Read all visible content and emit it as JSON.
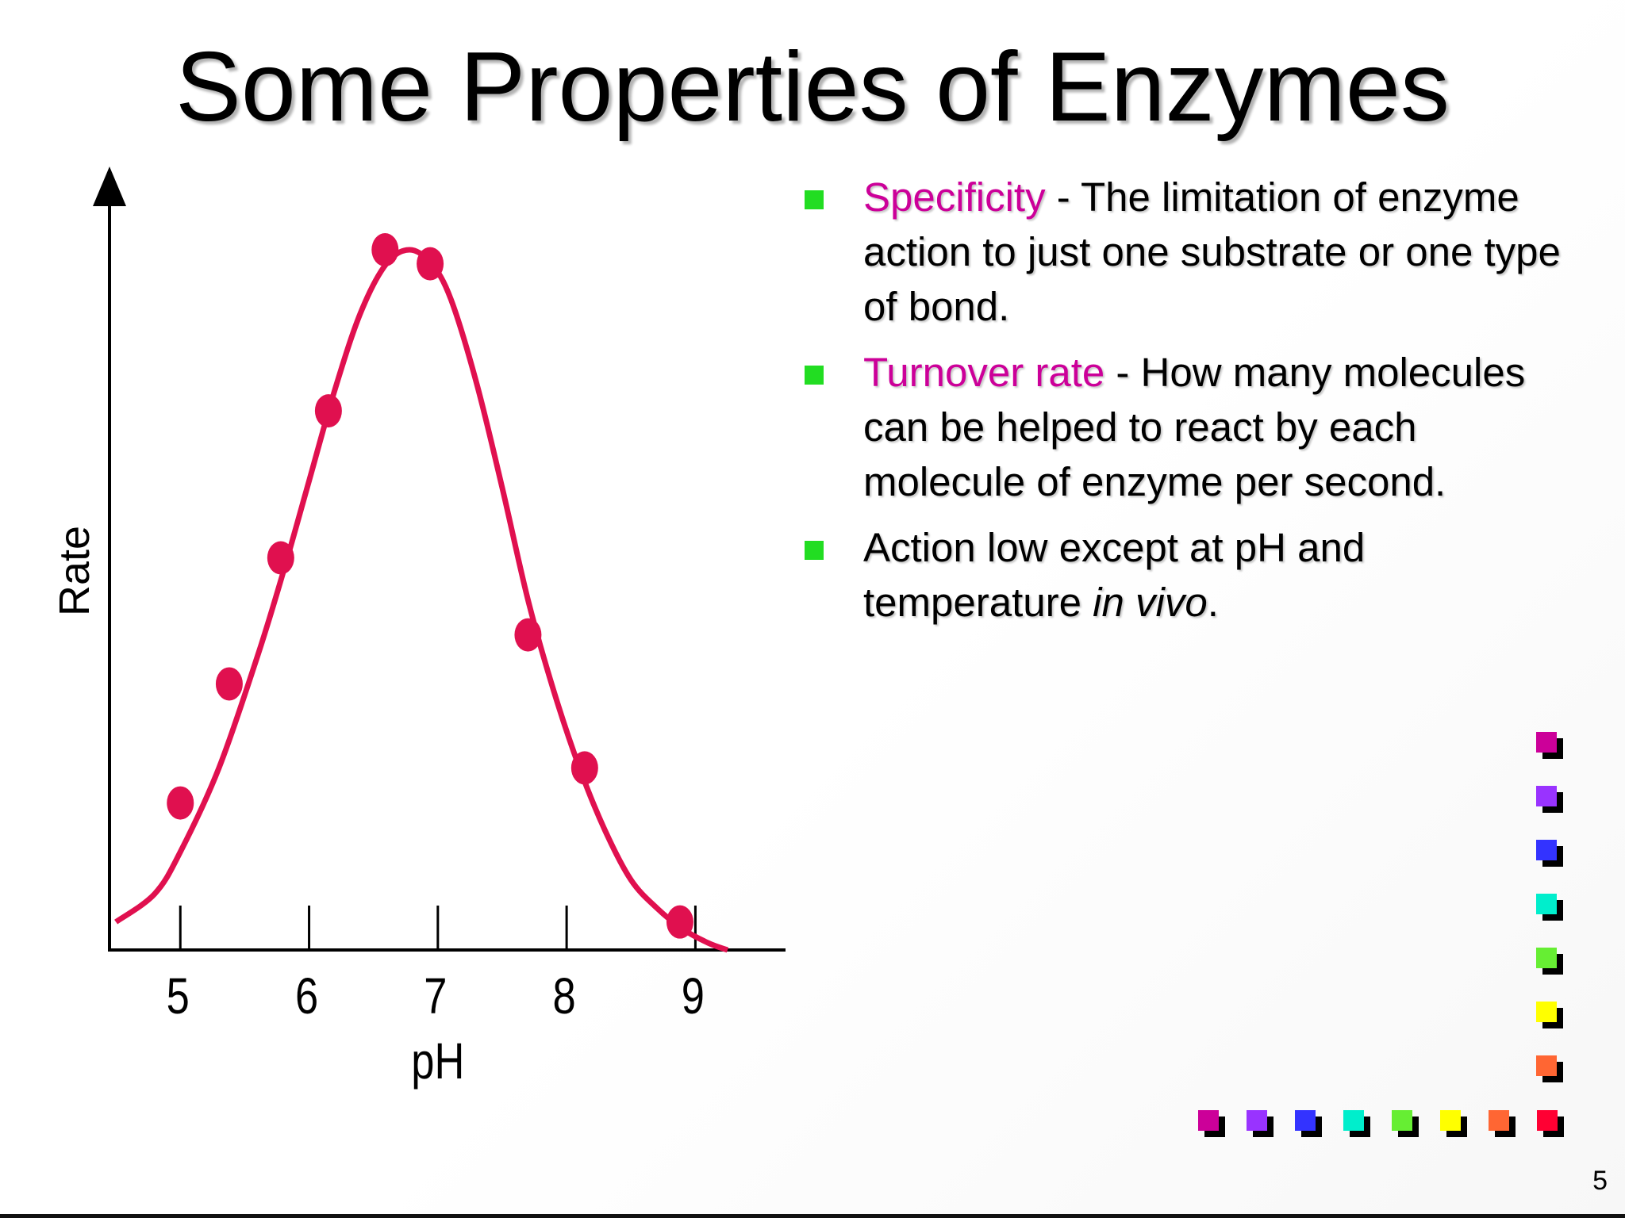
{
  "slide": {
    "title": "Some Properties of Enzymes",
    "page_number": "5",
    "bullets": [
      {
        "term": "Specificity",
        "pre": "",
        "text": " - The limitation of enzyme action to just one substrate or one type of bond.",
        "italic": "",
        "post": ""
      },
      {
        "term": "Turnover rate",
        "pre": "",
        "text": " - How many molecules can be helped to react by each molecule of enzyme per second.",
        "italic": "",
        "post": ""
      },
      {
        "term": "",
        "pre": "Action low except at pH and temperature ",
        "text": "",
        "italic": "in vivo",
        "post": "."
      }
    ],
    "colors": {
      "term": "#cc0099",
      "bullet_marker": "#22dd22",
      "curve": "#e0104f",
      "points": "#e0104f"
    },
    "decorative_squares": {
      "column_colors": [
        "#cc0099",
        "#9933ff",
        "#3333ff",
        "#00eecc",
        "#66ee33",
        "#ffff00",
        "#ff6633"
      ],
      "row_colors": [
        "#cc0099",
        "#9933ff",
        "#3333ff",
        "#00eecc",
        "#66ee33",
        "#ffff00",
        "#ff6633",
        "#ff0033"
      ]
    }
  },
  "chart_data": {
    "type": "scatter",
    "xlabel": "pH",
    "ylabel": "Rate",
    "x_ticks": [
      5,
      6,
      7,
      8,
      9
    ],
    "xlim": [
      4.45,
      9.7
    ],
    "ylim": [
      0,
      1
    ],
    "grid": false,
    "series": [
      {
        "kind": "points",
        "x": [
          5.0,
          5.38,
          5.78,
          6.15,
          6.59,
          6.94,
          7.7,
          8.14,
          8.88
        ],
        "y": [
          0.21,
          0.38,
          0.56,
          0.77,
          1.0,
          0.98,
          0.45,
          0.26,
          0.04
        ]
      },
      {
        "kind": "curve",
        "x": [
          4.5,
          4.8,
          5.0,
          5.3,
          5.6,
          5.8,
          6.0,
          6.2,
          6.4,
          6.6,
          6.78,
          6.95,
          7.1,
          7.3,
          7.5,
          7.7,
          7.9,
          8.1,
          8.3,
          8.5,
          8.7,
          8.9,
          9.1,
          9.25
        ],
        "y": [
          0.04,
          0.08,
          0.14,
          0.26,
          0.42,
          0.54,
          0.67,
          0.8,
          0.91,
          0.98,
          1.0,
          0.98,
          0.93,
          0.81,
          0.66,
          0.5,
          0.37,
          0.26,
          0.17,
          0.1,
          0.06,
          0.03,
          0.01,
          0.0
        ]
      }
    ]
  }
}
